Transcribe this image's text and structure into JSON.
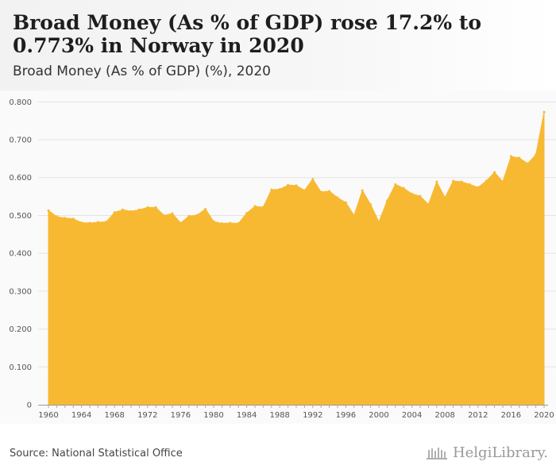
{
  "header": {
    "title": "Broad Money (As % of GDP) rose 17.2% to 0.773% in Norway in 2020",
    "subtitle": "Broad Money (As % of GDP) (%), 2020"
  },
  "footer": {
    "source": "Source: National Statistical Office",
    "brand": "HelgiLibrary."
  },
  "colors": {
    "area": "#f8b932",
    "gridline": "#e4e4e4",
    "plot_background": "#fafafa"
  },
  "chart_data": {
    "type": "area",
    "title": "Broad Money (As % of GDP) rose 17.2% to 0.773% in Norway in 2020",
    "subtitle": "Broad Money (As % of GDP) (%), 2020",
    "xlabel": "",
    "ylabel": "",
    "x": [
      1960,
      1961,
      1962,
      1963,
      1964,
      1965,
      1966,
      1967,
      1968,
      1969,
      1970,
      1971,
      1972,
      1973,
      1974,
      1975,
      1976,
      1977,
      1978,
      1979,
      1980,
      1981,
      1982,
      1983,
      1984,
      1985,
      1986,
      1987,
      1988,
      1989,
      1990,
      1991,
      1992,
      1993,
      1994,
      1995,
      1996,
      1997,
      1998,
      1999,
      2000,
      2001,
      2002,
      2003,
      2004,
      2005,
      2006,
      2007,
      2008,
      2009,
      2010,
      2011,
      2012,
      2013,
      2014,
      2015,
      2016,
      2017,
      2018,
      2019,
      2020
    ],
    "values": [
      0.513,
      0.497,
      0.493,
      0.491,
      0.481,
      0.48,
      0.482,
      0.483,
      0.508,
      0.515,
      0.511,
      0.515,
      0.521,
      0.521,
      0.5,
      0.505,
      0.48,
      0.498,
      0.501,
      0.517,
      0.484,
      0.479,
      0.48,
      0.479,
      0.506,
      0.524,
      0.522,
      0.568,
      0.569,
      0.58,
      0.579,
      0.566,
      0.596,
      0.562,
      0.564,
      0.547,
      0.534,
      0.5,
      0.566,
      0.529,
      0.483,
      0.539,
      0.582,
      0.572,
      0.557,
      0.551,
      0.529,
      0.589,
      0.547,
      0.591,
      0.589,
      0.582,
      0.574,
      0.591,
      0.614,
      0.589,
      0.656,
      0.652,
      0.637,
      0.66,
      0.773
    ],
    "x_ticks": [
      "1960",
      "1964",
      "1968",
      "1972",
      "1976",
      "1980",
      "1984",
      "1988",
      "1992",
      "1996",
      "2000",
      "2004",
      "2008",
      "2012",
      "2016",
      "2020"
    ],
    "y_ticks": [
      "0",
      "0.100",
      "0.200",
      "0.300",
      "0.400",
      "0.500",
      "0.600",
      "0.700",
      "0.800"
    ],
    "ylim": [
      0,
      0.83
    ],
    "xlim": [
      1960,
      2020
    ],
    "grid": true,
    "legend": "none"
  }
}
